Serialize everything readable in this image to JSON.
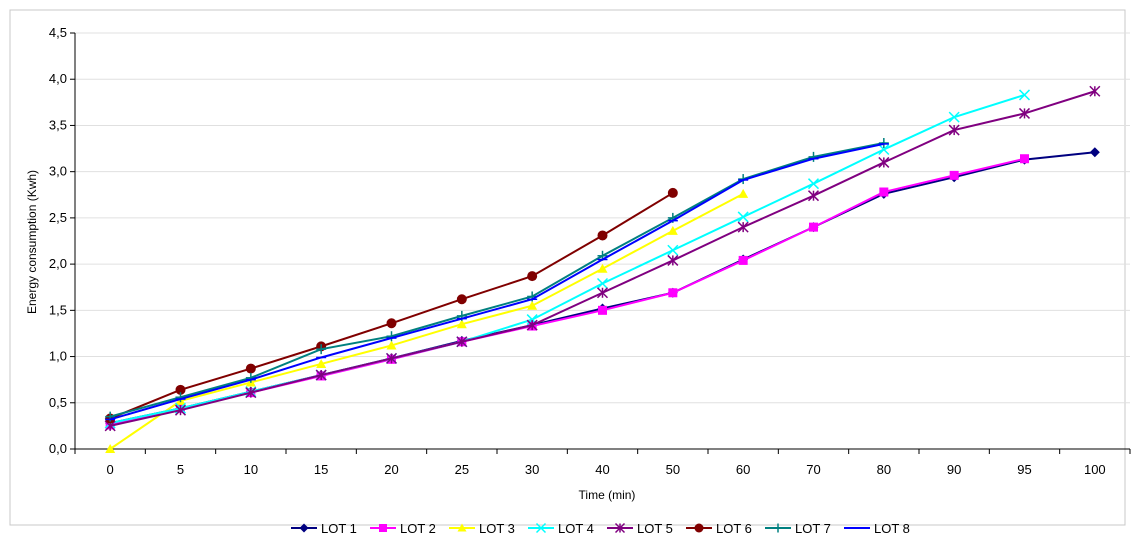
{
  "chart_data": {
    "type": "line",
    "categories": [
      "0",
      "5",
      "10",
      "15",
      "20",
      "25",
      "30",
      "40",
      "50",
      "60",
      "70",
      "80",
      "90",
      "95",
      "100"
    ],
    "xlabel": "Time (min)",
    "ylabel": "Energy consumption (Kwh)",
    "ylim": [
      0,
      4.5
    ],
    "yticks": [
      "0,0",
      "0,5",
      "1,0",
      "1,5",
      "2,0",
      "2,5",
      "3,0",
      "3,5",
      "4,0",
      "4,5"
    ],
    "grid": "horizontal",
    "legend_position": "bottom",
    "series": [
      {
        "name": "LOT 1",
        "color": "#000080",
        "marker": "diamond",
        "values": [
          0.28,
          0.44,
          0.62,
          0.8,
          0.98,
          1.17,
          1.34,
          1.52,
          1.69,
          2.05,
          2.4,
          2.76,
          2.94,
          3.13,
          3.21
        ]
      },
      {
        "name": "LOT 2",
        "color": "#ff00ff",
        "marker": "square",
        "values": [
          0.26,
          0.44,
          0.61,
          0.79,
          0.97,
          1.16,
          1.33,
          1.5,
          1.69,
          2.04,
          2.4,
          2.78,
          2.96,
          3.14,
          null
        ]
      },
      {
        "name": "LOT 3",
        "color": "#ffff00",
        "marker": "triangle",
        "values": [
          0.0,
          0.52,
          0.72,
          0.92,
          1.12,
          1.35,
          1.55,
          1.95,
          2.36,
          2.76,
          null,
          null,
          null,
          null,
          null
        ]
      },
      {
        "name": "LOT 4",
        "color": "#00ffff",
        "marker": "x",
        "values": [
          0.28,
          0.44,
          0.62,
          0.8,
          0.98,
          1.16,
          1.4,
          1.79,
          2.15,
          2.51,
          2.87,
          3.24,
          3.59,
          3.83,
          null
        ]
      },
      {
        "name": "LOT 5",
        "color": "#800080",
        "marker": "star",
        "values": [
          0.25,
          0.42,
          0.61,
          0.8,
          0.98,
          1.16,
          1.34,
          1.69,
          2.04,
          2.4,
          2.74,
          3.1,
          3.45,
          3.63,
          3.87
        ]
      },
      {
        "name": "LOT 6",
        "color": "#800000",
        "marker": "circle",
        "values": [
          0.33,
          0.64,
          0.87,
          1.11,
          1.36,
          1.62,
          1.87,
          2.31,
          2.77,
          null,
          null,
          null,
          null,
          null,
          null
        ]
      },
      {
        "name": "LOT 7",
        "color": "#008080",
        "marker": "plus",
        "values": [
          0.35,
          0.56,
          0.77,
          1.08,
          1.22,
          1.44,
          1.65,
          2.09,
          2.5,
          2.92,
          3.16,
          3.31,
          null,
          null,
          null
        ]
      },
      {
        "name": "LOT 8",
        "color": "#0000ff",
        "marker": "dash",
        "values": [
          0.32,
          0.54,
          0.75,
          0.99,
          1.2,
          1.41,
          1.62,
          2.05,
          2.47,
          2.91,
          3.14,
          3.3,
          null,
          null,
          null
        ]
      }
    ]
  }
}
